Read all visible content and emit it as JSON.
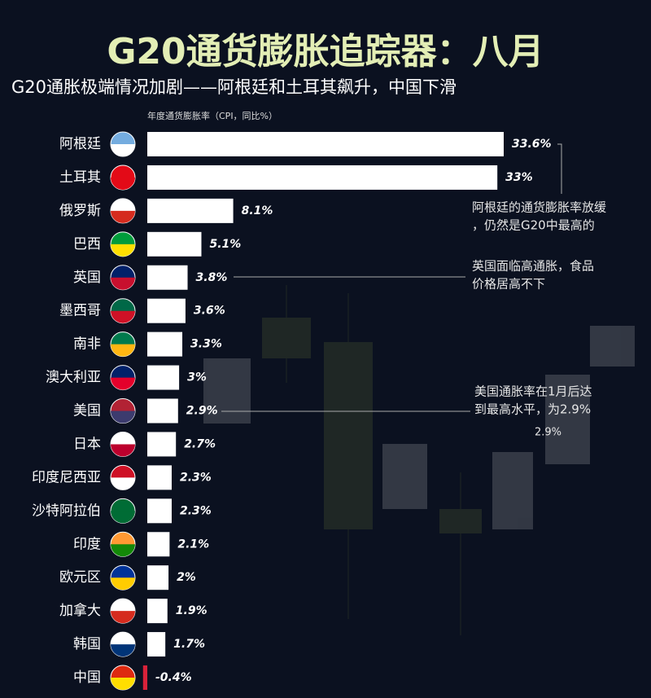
{
  "chart_data": {
    "type": "barh",
    "title": "G20通货膨胀追踪器：八月",
    "subtitle": "G20通胀极端情况加剧——阿根廷和土耳其飙升，中国下滑",
    "x_label": "年度通货膨胀率（CPI，同比%）",
    "categories": [
      "阿根廷",
      "土耳其",
      "俄罗斯",
      "巴西",
      "英国",
      "墨西哥",
      "南非",
      "澳大利亚",
      "美国",
      "日本",
      "印度尼西亚",
      "沙特阿拉伯",
      "印度",
      "欧元区",
      "加拿大",
      "韩国",
      "中国"
    ],
    "values": [
      33.6,
      33,
      8.1,
      5.1,
      3.8,
      3.6,
      3.3,
      3,
      2.9,
      2.7,
      2.3,
      2.3,
      2.1,
      2,
      1.9,
      1.7,
      -0.4
    ],
    "value_labels": [
      "33.6%",
      "33%",
      "8.1%",
      "5.1%",
      "3.8%",
      "3.6%",
      "3.3%",
      "3%",
      "2.9%",
      "2.7%",
      "2.3%",
      "2.3%",
      "2.1%",
      "2%",
      "1.9%",
      "1.7%",
      "-0.4%"
    ],
    "color": "#ffffff",
    "negative_color": "#d9223a",
    "annotations": [
      [
        "阿根廷的通货膨胀率放缓",
        "，仍然是G20中最高的"
      ],
      [
        "英国面临高通胀，食品",
        "价格居高不下"
      ],
      [
        "美国通胀率在1月后达",
        "到最高水平，为2.9%"
      ],
      [
        "2.9%"
      ]
    ]
  }
}
